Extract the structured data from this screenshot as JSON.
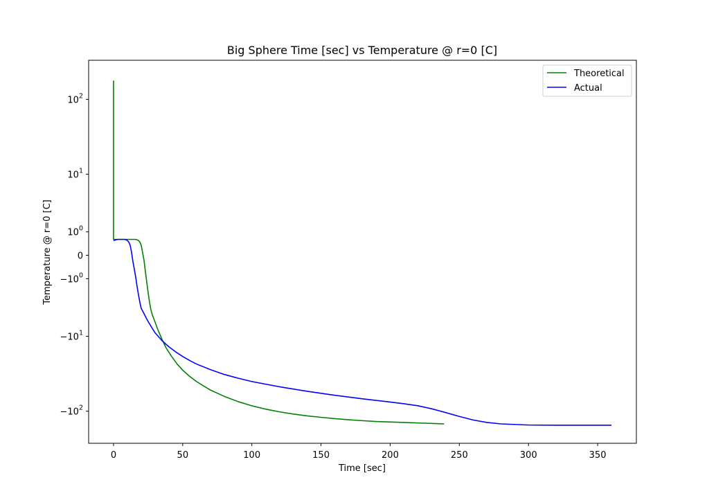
{
  "chart_data": {
    "type": "line",
    "title": "Big Sphere Time [sec] vs Temperature @ r=0 [C]",
    "xlabel": "Time [sec]",
    "ylabel": "Temperature @ r=0 [C]",
    "xlim": [
      -18,
      378
    ],
    "ylim": [
      -260,
      320
    ],
    "yscale": "symlog",
    "symlog_linthresh": 1,
    "grid": false,
    "legend_position": "top-right",
    "x_ticks": [
      {
        "value": 0,
        "label": "0"
      },
      {
        "value": 50,
        "label": "50"
      },
      {
        "value": 100,
        "label": "100"
      },
      {
        "value": 150,
        "label": "150"
      },
      {
        "value": 200,
        "label": "200"
      },
      {
        "value": 250,
        "label": "250"
      },
      {
        "value": 300,
        "label": "300"
      },
      {
        "value": 350,
        "label": "350"
      }
    ],
    "y_ticks": [
      {
        "value": 100,
        "base": "10",
        "exp": "2"
      },
      {
        "value": 10,
        "base": "10",
        "exp": "1"
      },
      {
        "value": 1,
        "base": "10",
        "exp": "0"
      },
      {
        "value": 0,
        "base": "0",
        "exp": ""
      },
      {
        "value": -1,
        "base": "−10",
        "exp": "0"
      },
      {
        "value": -10,
        "base": "−10",
        "exp": "1"
      },
      {
        "value": -100,
        "base": "−10",
        "exp": "2"
      }
    ],
    "series": [
      {
        "name": "Theoretical",
        "color": "#008000",
        "x": [
          0,
          0,
          0,
          2,
          5,
          10,
          12,
          14,
          16,
          17,
          18,
          19,
          20,
          22,
          23,
          24,
          25,
          26,
          27,
          28,
          30,
          32,
          35,
          38,
          42,
          46,
          50,
          55,
          60,
          70,
          80,
          90,
          100,
          110,
          120,
          130,
          140,
          150,
          160,
          175,
          190,
          210,
          225,
          239
        ],
        "y": [
          175,
          10,
          0.6,
          0.6,
          0.6,
          0.6,
          0.6,
          0.6,
          0.6,
          0.58,
          0.55,
          0.48,
          0.35,
          -0.15,
          -0.6,
          -1.2,
          -2,
          -3,
          -4,
          -4.8,
          -6.2,
          -8,
          -11,
          -14.5,
          -19,
          -24,
          -29,
          -35,
          -41,
          -53,
          -64,
          -75,
          -85,
          -94,
          -102,
          -109,
          -115,
          -120,
          -125,
          -131,
          -136,
          -140,
          -143,
          -146
        ]
      },
      {
        "name": "Actual",
        "color": "#0000ff",
        "x": [
          0,
          3,
          6,
          8,
          9,
          10,
          11,
          12,
          13,
          14,
          15,
          16,
          17,
          18,
          19,
          20,
          22,
          24,
          26,
          28,
          30,
          35,
          40,
          45,
          50,
          55,
          60,
          70,
          80,
          90,
          100,
          120,
          140,
          160,
          180,
          200,
          210,
          220,
          230,
          240,
          250,
          260,
          270,
          280,
          300,
          320,
          340,
          360
        ],
        "y": [
          0.55,
          0.6,
          0.6,
          0.6,
          0.58,
          0.55,
          0.48,
          0.35,
          0.1,
          -0.2,
          -0.5,
          -0.9,
          -1.5,
          -2.2,
          -3,
          -3.8,
          -4.6,
          -5.6,
          -6.6,
          -7.7,
          -8.9,
          -11.5,
          -14,
          -16.5,
          -19,
          -21.5,
          -24,
          -28.5,
          -33,
          -37,
          -41,
          -48,
          -55,
          -62,
          -69,
          -76,
          -80,
          -85,
          -93,
          -104,
          -117,
          -130,
          -140,
          -146,
          -151,
          -152,
          -152,
          -152
        ]
      }
    ]
  }
}
